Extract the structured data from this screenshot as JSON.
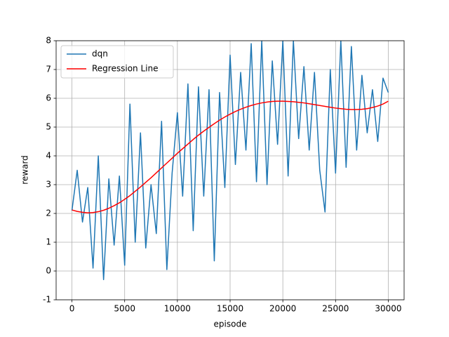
{
  "chart_data": {
    "type": "line",
    "xlabel": "episode",
    "ylabel": "reward",
    "x": [
      0,
      500,
      1000,
      1500,
      2000,
      2500,
      3000,
      3500,
      4000,
      4500,
      5000,
      5500,
      6000,
      6500,
      7000,
      7500,
      8000,
      8500,
      9000,
      9500,
      10000,
      10500,
      11000,
      11500,
      12000,
      12500,
      13000,
      13500,
      14000,
      14500,
      15000,
      15500,
      16000,
      16500,
      17000,
      17500,
      18000,
      18500,
      19000,
      19500,
      20000,
      20500,
      21000,
      21500,
      22000,
      22500,
      23000,
      23500,
      24000,
      24500,
      25000,
      25500,
      26000,
      26500,
      27000,
      27500,
      28000,
      28500,
      29000,
      29500,
      30000
    ],
    "series": [
      {
        "name": "dqn",
        "color": "#1f77b4",
        "values": [
          2.1,
          3.5,
          1.7,
          2.9,
          0.1,
          4.0,
          -0.3,
          3.2,
          0.9,
          3.3,
          0.2,
          5.8,
          1.0,
          4.8,
          0.8,
          3.0,
          1.3,
          5.2,
          0.05,
          3.4,
          5.5,
          2.6,
          6.5,
          1.4,
          6.4,
          2.6,
          6.3,
          0.35,
          6.2,
          2.9,
          7.5,
          3.7,
          6.9,
          4.2,
          7.9,
          3.1,
          8.0,
          3.0,
          7.3,
          4.4,
          8.0,
          3.3,
          8.0,
          4.6,
          7.1,
          4.2,
          6.9,
          3.5,
          2.05,
          7.0,
          3.4,
          8.0,
          3.6,
          7.8,
          4.2,
          6.8,
          4.8,
          6.3,
          4.5,
          6.7,
          6.2
        ]
      },
      {
        "name": "Regression Line",
        "color": "#ff0000",
        "values": [
          2.12,
          2.07,
          2.04,
          2.02,
          2.03,
          2.06,
          2.11,
          2.18,
          2.27,
          2.37,
          2.49,
          2.62,
          2.77,
          2.92,
          3.08,
          3.24,
          3.41,
          3.58,
          3.75,
          3.92,
          4.09,
          4.25,
          4.41,
          4.57,
          4.72,
          4.86,
          4.99,
          5.12,
          5.24,
          5.35,
          5.45,
          5.54,
          5.62,
          5.69,
          5.75,
          5.8,
          5.84,
          5.87,
          5.89,
          5.9,
          5.9,
          5.89,
          5.88,
          5.86,
          5.84,
          5.81,
          5.78,
          5.75,
          5.72,
          5.69,
          5.66,
          5.64,
          5.62,
          5.61,
          5.61,
          5.62,
          5.64,
          5.68,
          5.73,
          5.8,
          5.9
        ]
      }
    ],
    "xlim": [
      -1500,
      31500
    ],
    "ylim": [
      -1,
      8
    ],
    "xticks": [
      0,
      5000,
      10000,
      15000,
      20000,
      25000,
      30000
    ],
    "yticks": [
      -1,
      0,
      1,
      2,
      3,
      4,
      5,
      6,
      7,
      8
    ],
    "grid": true,
    "legend": "upper-left"
  }
}
